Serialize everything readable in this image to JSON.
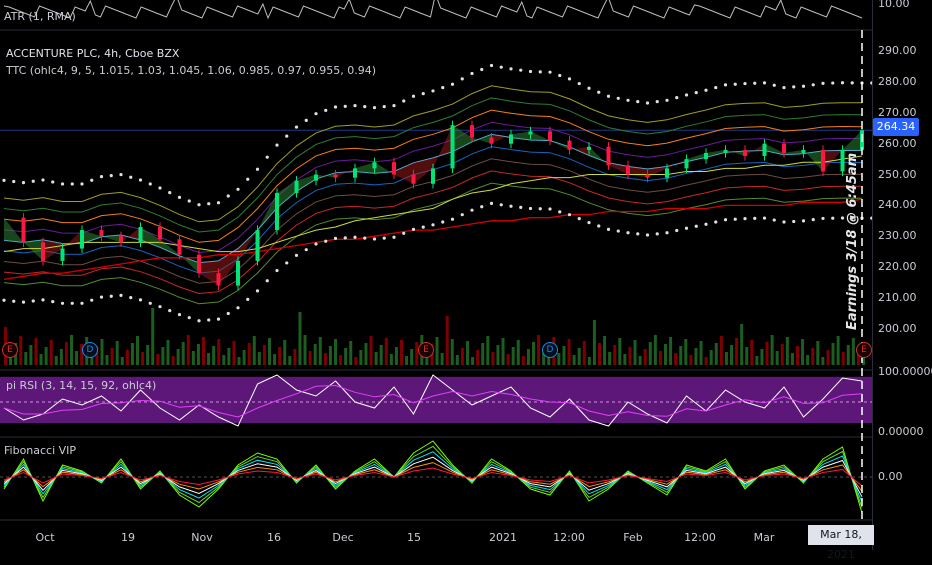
{
  "header": {
    "atr_label": "ATR (1, RMA)",
    "symbol_title": "ACCENTURE PLC, 4h, Cboe BZX",
    "ttc_label": "TTC (ohlc4, 9, 5, 1.015, 1.03, 1.045, 1.06, 0.985, 0.97, 0.955, 0.94)",
    "rsi_label": "pi RSI (3, 14, 15, 92, ohlc4)",
    "vip_label": "Fibonacci VIP"
  },
  "annotation": {
    "earnings_text": "Earnings 3/18 @ 6:45am"
  },
  "events": {
    "earnings_letter": "E",
    "dividend_letter": "D"
  },
  "current": {
    "price": "264.34",
    "date": "Mar 18, 2021"
  },
  "colors": {
    "background": "#000000",
    "up_candle": "#00e676",
    "down_candle": "#ff1744",
    "price_tag": "#2962ff",
    "rsi_band": "#7b1fa2",
    "long_ma": "#d50000",
    "mid_ma": "#cddc39",
    "envelope_dots": "#e0e0e0"
  },
  "chart_data": [
    {
      "type": "line",
      "title": "ACCENTURE PLC, 4h, Cboe BZX",
      "y_axis_ticks": [
        "290.00",
        "280.00",
        "270.00",
        "260.00",
        "250.00",
        "240.00",
        "230.00",
        "220.00",
        "210.00",
        "200.00"
      ],
      "ylim": [
        197,
        292
      ],
      "x_axis_ticks": [
        "Oct",
        "19",
        "Nov",
        "16",
        "Dec",
        "15",
        "2021",
        "12:00",
        "Feb",
        "12:00",
        "Mar"
      ],
      "series": [
        {
          "name": "close",
          "values": [
            236,
            228,
            222,
            226,
            232,
            230,
            228,
            233,
            229,
            224,
            218,
            214,
            222,
            232,
            244,
            248,
            250,
            249,
            252,
            254,
            250,
            247,
            252,
            266,
            262,
            260,
            263,
            264,
            261,
            258,
            259,
            253,
            250,
            249,
            252,
            255,
            257,
            258,
            256,
            260,
            257,
            258,
            251,
            258,
            264.34
          ]
        },
        {
          "values": [
            225,
            226,
            226,
            227,
            228,
            228,
            228,
            228,
            228,
            227,
            226,
            225,
            225,
            226,
            228,
            230,
            232,
            233,
            235,
            236,
            237,
            238,
            239,
            242,
            244,
            245,
            247,
            248,
            249,
            249,
            250,
            250,
            250,
            250,
            250,
            251,
            251,
            252,
            252,
            253,
            253,
            254,
            254,
            255,
            256
          ]
        },
        {
          "values": [
            216,
            217,
            218,
            218,
            219,
            220,
            221,
            222,
            223,
            223,
            223,
            224,
            224,
            225,
            226,
            227,
            228,
            229,
            229,
            230,
            231,
            232,
            232,
            233,
            234,
            235,
            235,
            236,
            236,
            237,
            237,
            238,
            238,
            238,
            239,
            239,
            239,
            240,
            240,
            240,
            240,
            241,
            241,
            241,
            242
          ]
        }
      ]
    },
    {
      "type": "line",
      "title": "pi RSI (3, 14, 15, 92, ohlc4)",
      "y_axis_ticks": [
        "100.00000",
        "0.00000"
      ],
      "ylim": [
        0,
        100
      ],
      "series": [
        {
          "values": [
            40,
            20,
            30,
            55,
            45,
            60,
            35,
            70,
            40,
            20,
            45,
            25,
            10,
            80,
            95,
            70,
            60,
            85,
            50,
            40,
            75,
            30,
            95,
            70,
            45,
            60,
            75,
            40,
            25,
            55,
            20,
            10,
            50,
            30,
            15,
            60,
            35,
            70,
            50,
            40,
            75,
            25,
            55,
            90,
            85
          ]
        }
      ]
    },
    {
      "type": "line",
      "title": "Fibonacci VIP",
      "y_axis_ticks": [
        "0.00"
      ],
      "series": [
        {
          "values": [
            -2,
            3,
            -4,
            2,
            1,
            -1,
            3,
            -2,
            1,
            -3,
            -5,
            -2,
            2,
            4,
            3,
            -1,
            2,
            -2,
            1,
            3,
            0,
            4,
            6,
            2,
            -1,
            3,
            1,
            -2,
            -3,
            1,
            -4,
            -2,
            1,
            -1,
            -3,
            2,
            1,
            3,
            -2,
            1,
            2,
            -1,
            3,
            5,
            -6
          ]
        }
      ]
    },
    {
      "type": "line",
      "title": "ATR (1, RMA)",
      "y_axis_ticks": [
        "10.00"
      ]
    }
  ]
}
